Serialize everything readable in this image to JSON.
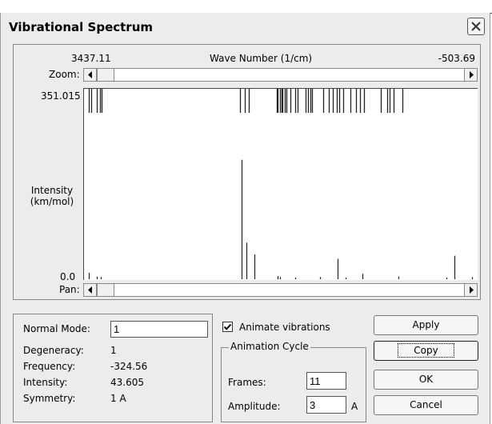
{
  "window": {
    "title": "Vibrational Spectrum"
  },
  "spectrum": {
    "wn_left": "3437.11",
    "wn_label": "Wave Number (1/cm)",
    "wn_right": "-503.69",
    "zoom_label": "Zoom:",
    "pan_label": "Pan:",
    "y_max": "351.015",
    "y_min": "0.0",
    "y_label_line1": "Intensity",
    "y_label_line2": "(km/mol)"
  },
  "chart_data": {
    "type": "bar",
    "x_range": [
      3437.11,
      -503.69
    ],
    "y_range": [
      0,
      351.015
    ],
    "top_ticks_x": [
      3410,
      3390,
      3330,
      3300,
      3280,
      1870,
      1820,
      1780,
      1490,
      1480,
      1460,
      1445,
      1430,
      1410,
      1395,
      1350,
      1300,
      1280,
      1200,
      1170,
      1150,
      1130,
      1020,
      960,
      920,
      880,
      850,
      810,
      740,
      680,
      640,
      600,
      430,
      360,
      340,
      300,
      210
    ],
    "peaks": [
      {
        "x": 3410,
        "y": 12
      },
      {
        "x": 3330,
        "y": 5
      },
      {
        "x": 3290,
        "y": 4
      },
      {
        "x": 1850,
        "y": 222
      },
      {
        "x": 1800,
        "y": 68
      },
      {
        "x": 1720,
        "y": 46
      },
      {
        "x": 1480,
        "y": 6
      },
      {
        "x": 1460,
        "y": 4
      },
      {
        "x": 1300,
        "y": 3
      },
      {
        "x": 1050,
        "y": 4
      },
      {
        "x": 870,
        "y": 38
      },
      {
        "x": 790,
        "y": 3
      },
      {
        "x": 620,
        "y": 10
      },
      {
        "x": 250,
        "y": 5
      },
      {
        "x": -240,
        "y": 3
      },
      {
        "x": -324.56,
        "y": 43.6
      },
      {
        "x": -500,
        "y": 4
      }
    ]
  },
  "info": {
    "normal_mode_label": "Normal Mode:",
    "normal_mode_value": "1",
    "degeneracy_label": "Degeneracy:",
    "degeneracy_value": "1",
    "frequency_label": "Frequency:",
    "frequency_value": "-324.56",
    "intensity_label": "Intensity:",
    "intensity_value": "43.605",
    "symmetry_label": "Symmetry:",
    "symmetry_value": "1 A"
  },
  "animate": {
    "checkbox_label": "Animate vibrations",
    "checked": true,
    "group_label": "Animation Cycle",
    "frames_label": "Frames:",
    "frames_value": "11",
    "amplitude_label": "Amplitude:",
    "amplitude_value": "3",
    "amplitude_unit": "A"
  },
  "buttons": {
    "apply": "Apply",
    "copy": "Copy",
    "ok": "OK",
    "cancel": "Cancel"
  }
}
